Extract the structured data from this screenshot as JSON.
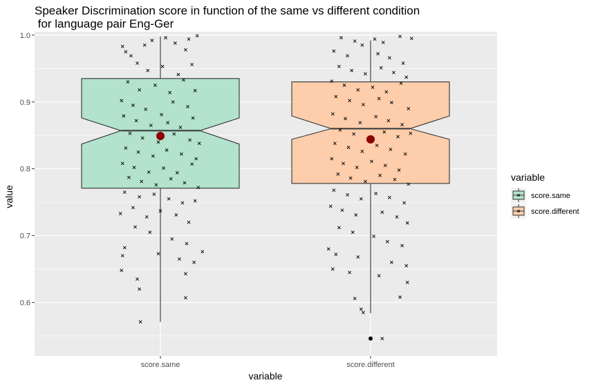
{
  "chart_data": {
    "type": "box",
    "title_lines": [
      "Speaker Discrimination score in function of the same vs different condition",
      " for language pair Eng-Ger"
    ],
    "xlabel": "variable",
    "ylabel": "value",
    "categories": [
      "score.same",
      "score.different"
    ],
    "ylim": [
      0.52,
      1.005
    ],
    "yticks": [
      0.6,
      0.7,
      0.8,
      0.9,
      1.0
    ],
    "ytick_labels": [
      "0.6",
      "0.7",
      "0.8",
      "0.9",
      "1.0"
    ],
    "grid": true,
    "legend": {
      "title": "variable",
      "position": "right",
      "entries": [
        "score.same",
        "score.different"
      ]
    },
    "colors": {
      "panel": "#ebebeb",
      "grid": "#ffffff",
      "mean_point": "#8b0000",
      "jitter": "#000000"
    },
    "series": [
      {
        "name": "score.same",
        "fill": "#b3e2cd",
        "whisker_low": 0.571,
        "q1": 0.771,
        "median": 0.857,
        "q3": 0.935,
        "whisker_high": 0.998,
        "notch_low": 0.837,
        "notch_high": 0.876,
        "mean": 0.849,
        "outliers": [],
        "jitter": [
          [
            -0.36,
            0.983
          ],
          [
            -0.33,
            0.975
          ],
          [
            -0.28,
            0.969
          ],
          [
            -0.22,
            0.958
          ],
          [
            -0.15,
            0.985
          ],
          [
            -0.08,
            0.992
          ],
          [
            0.05,
            0.996
          ],
          [
            0.14,
            0.988
          ],
          [
            0.27,
            0.994
          ],
          [
            0.35,
            0.999
          ],
          [
            0.24,
            0.978
          ],
          [
            -0.12,
            0.947
          ],
          [
            0.02,
            0.953
          ],
          [
            0.17,
            0.941
          ],
          [
            0.3,
            0.956
          ],
          [
            -0.31,
            0.93
          ],
          [
            -0.2,
            0.918
          ],
          [
            -0.05,
            0.925
          ],
          [
            0.09,
            0.914
          ],
          [
            0.22,
            0.933
          ],
          [
            0.33,
            0.917
          ],
          [
            -0.37,
            0.902
          ],
          [
            -0.26,
            0.895
          ],
          [
            -0.14,
            0.889
          ],
          [
            0.01,
            0.881
          ],
          [
            0.12,
            0.9
          ],
          [
            0.26,
            0.893
          ],
          [
            -0.35,
            0.879
          ],
          [
            -0.23,
            0.872
          ],
          [
            -0.09,
            0.865
          ],
          [
            0.07,
            0.869
          ],
          [
            0.19,
            0.862
          ],
          [
            0.31,
            0.876
          ],
          [
            -0.29,
            0.853
          ],
          [
            -0.17,
            0.846
          ],
          [
            -0.02,
            0.84
          ],
          [
            0.13,
            0.852
          ],
          [
            0.28,
            0.843
          ],
          [
            0.37,
            0.838
          ],
          [
            -0.33,
            0.831
          ],
          [
            -0.21,
            0.825
          ],
          [
            -0.07,
            0.819
          ],
          [
            0.06,
            0.828
          ],
          [
            0.2,
            0.822
          ],
          [
            0.34,
            0.815
          ],
          [
            -0.36,
            0.808
          ],
          [
            -0.25,
            0.802
          ],
          [
            -0.11,
            0.795
          ],
          [
            0.03,
            0.801
          ],
          [
            0.16,
            0.794
          ],
          [
            0.3,
            0.807
          ],
          [
            -0.3,
            0.787
          ],
          [
            -0.18,
            0.781
          ],
          [
            -0.04,
            0.776
          ],
          [
            0.1,
            0.785
          ],
          [
            0.23,
            0.779
          ],
          [
            0.36,
            0.772
          ],
          [
            -0.34,
            0.765
          ],
          [
            -0.2,
            0.758
          ],
          [
            -0.06,
            0.762
          ],
          [
            0.08,
            0.755
          ],
          [
            0.21,
            0.749
          ],
          [
            0.33,
            0.752
          ],
          [
            -0.38,
            0.733
          ],
          [
            -0.26,
            0.742
          ],
          [
            -0.13,
            0.728
          ],
          [
            0.0,
            0.737
          ],
          [
            0.15,
            0.731
          ],
          [
            0.27,
            0.72
          ],
          [
            -0.24,
            0.713
          ],
          [
            -0.1,
            0.705
          ],
          [
            0.11,
            0.695
          ],
          [
            0.25,
            0.688
          ],
          [
            0.4,
            0.676
          ],
          [
            -0.34,
            0.682
          ],
          [
            -0.36,
            0.67
          ],
          [
            -0.02,
            0.673
          ],
          [
            0.18,
            0.665
          ],
          [
            0.32,
            0.66
          ],
          [
            -0.37,
            0.648
          ],
          [
            0.24,
            0.643
          ],
          [
            -0.22,
            0.635
          ],
          [
            -0.2,
            0.62
          ],
          [
            0.24,
            0.607
          ],
          [
            -0.19,
            0.571
          ]
        ]
      },
      {
        "name": "score.different",
        "fill": "#fdcdac",
        "whisker_low": 0.584,
        "q1": 0.778,
        "median": 0.86,
        "q3": 0.93,
        "whisker_high": 0.992,
        "notch_low": 0.844,
        "notch_high": 0.879,
        "mean": 0.844,
        "outliers": [
          0.546
        ],
        "jitter": [
          [
            -0.28,
            0.996
          ],
          [
            -0.15,
            0.991
          ],
          [
            -0.08,
            0.985
          ],
          [
            0.04,
            0.994
          ],
          [
            0.12,
            0.989
          ],
          [
            0.28,
            0.998
          ],
          [
            0.39,
            0.995
          ],
          [
            -0.35,
            0.976
          ],
          [
            -0.22,
            0.969
          ],
          [
            0.07,
            0.972
          ],
          [
            0.18,
            0.966
          ],
          [
            0.31,
            0.958
          ],
          [
            -0.3,
            0.953
          ],
          [
            -0.18,
            0.947
          ],
          [
            -0.05,
            0.942
          ],
          [
            0.1,
            0.951
          ],
          [
            0.22,
            0.944
          ],
          [
            0.34,
            0.937
          ],
          [
            -0.37,
            0.931
          ],
          [
            -0.25,
            0.925
          ],
          [
            -0.12,
            0.918
          ],
          [
            0.02,
            0.922
          ],
          [
            0.15,
            0.915
          ],
          [
            0.29,
            0.928
          ],
          [
            -0.33,
            0.908
          ],
          [
            -0.2,
            0.902
          ],
          [
            -0.07,
            0.896
          ],
          [
            0.08,
            0.905
          ],
          [
            0.2,
            0.899
          ],
          [
            0.36,
            0.89
          ],
          [
            -0.36,
            0.882
          ],
          [
            -0.24,
            0.875
          ],
          [
            -0.1,
            0.869
          ],
          [
            0.05,
            0.878
          ],
          [
            0.17,
            0.872
          ],
          [
            0.3,
            0.866
          ],
          [
            -0.29,
            0.858
          ],
          [
            -0.16,
            0.852
          ],
          [
            -0.02,
            0.845
          ],
          [
            0.13,
            0.855
          ],
          [
            0.26,
            0.848
          ],
          [
            0.38,
            0.853
          ],
          [
            -0.34,
            0.838
          ],
          [
            -0.21,
            0.832
          ],
          [
            -0.08,
            0.826
          ],
          [
            0.06,
            0.835
          ],
          [
            0.19,
            0.829
          ],
          [
            0.33,
            0.822
          ],
          [
            -0.37,
            0.815
          ],
          [
            -0.26,
            0.808
          ],
          [
            -0.13,
            0.802
          ],
          [
            0.01,
            0.811
          ],
          [
            0.14,
            0.805
          ],
          [
            0.27,
            0.798
          ],
          [
            -0.31,
            0.792
          ],
          [
            -0.19,
            0.786
          ],
          [
            -0.05,
            0.781
          ],
          [
            0.09,
            0.79
          ],
          [
            0.23,
            0.784
          ],
          [
            0.36,
            0.777
          ],
          [
            -0.35,
            0.768
          ],
          [
            -0.22,
            0.761
          ],
          [
            -0.09,
            0.755
          ],
          [
            0.05,
            0.763
          ],
          [
            0.18,
            0.757
          ],
          [
            0.32,
            0.749
          ],
          [
            -0.38,
            0.744
          ],
          [
            -0.27,
            0.738
          ],
          [
            -0.14,
            0.731
          ],
          [
            0.11,
            0.735
          ],
          [
            0.25,
            0.728
          ],
          [
            0.35,
            0.719
          ],
          [
            -0.3,
            0.712
          ],
          [
            -0.17,
            0.705
          ],
          [
            0.03,
            0.699
          ],
          [
            0.16,
            0.691
          ],
          [
            0.3,
            0.685
          ],
          [
            -0.4,
            0.68
          ],
          [
            -0.33,
            0.672
          ],
          [
            -0.12,
            0.668
          ],
          [
            0.2,
            0.66
          ],
          [
            0.34,
            0.655
          ],
          [
            -0.36,
            0.65
          ],
          [
            -0.2,
            0.645
          ],
          [
            0.08,
            0.64
          ],
          [
            0.35,
            0.63
          ],
          [
            0.28,
            0.608
          ],
          [
            -0.15,
            0.606
          ],
          [
            -0.09,
            0.59
          ],
          [
            -0.07,
            0.585
          ],
          [
            0.11,
            0.546
          ]
        ]
      }
    ]
  }
}
